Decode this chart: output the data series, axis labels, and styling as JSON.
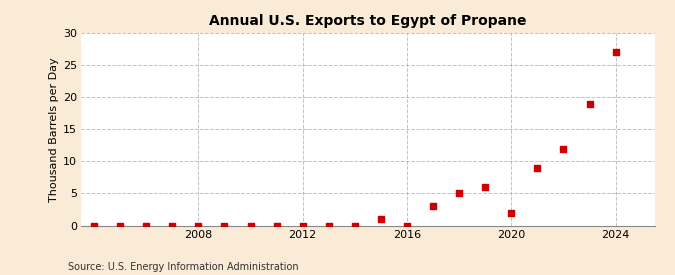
{
  "title": "Annual U.S. Exports to Egypt of Propane",
  "ylabel": "Thousand Barrels per Day",
  "source": "Source: U.S. Energy Information Administration",
  "background_color": "#faebd7",
  "plot_background_color": "#ffffff",
  "marker_color": "#cc0000",
  "marker_size": 4,
  "years": [
    2004,
    2005,
    2006,
    2007,
    2008,
    2009,
    2010,
    2011,
    2012,
    2013,
    2014,
    2015,
    2016,
    2017,
    2018,
    2019,
    2020,
    2021,
    2022,
    2023,
    2024
  ],
  "values": [
    0,
    0,
    0,
    0,
    0,
    0,
    0,
    0,
    0,
    0,
    0,
    1.0,
    0,
    3.0,
    5.0,
    6.0,
    2.0,
    9.0,
    12.0,
    19.0,
    27.0
  ],
  "ylim": [
    0,
    30
  ],
  "yticks": [
    0,
    5,
    10,
    15,
    20,
    25,
    30
  ],
  "xlim": [
    2003.5,
    2025.5
  ],
  "xticks": [
    2008,
    2012,
    2016,
    2020,
    2024
  ],
  "grid_color": "#999999",
  "grid_linestyle": "--",
  "grid_alpha": 0.6,
  "title_fontsize": 10,
  "ylabel_fontsize": 8,
  "tick_fontsize": 8,
  "source_fontsize": 7
}
